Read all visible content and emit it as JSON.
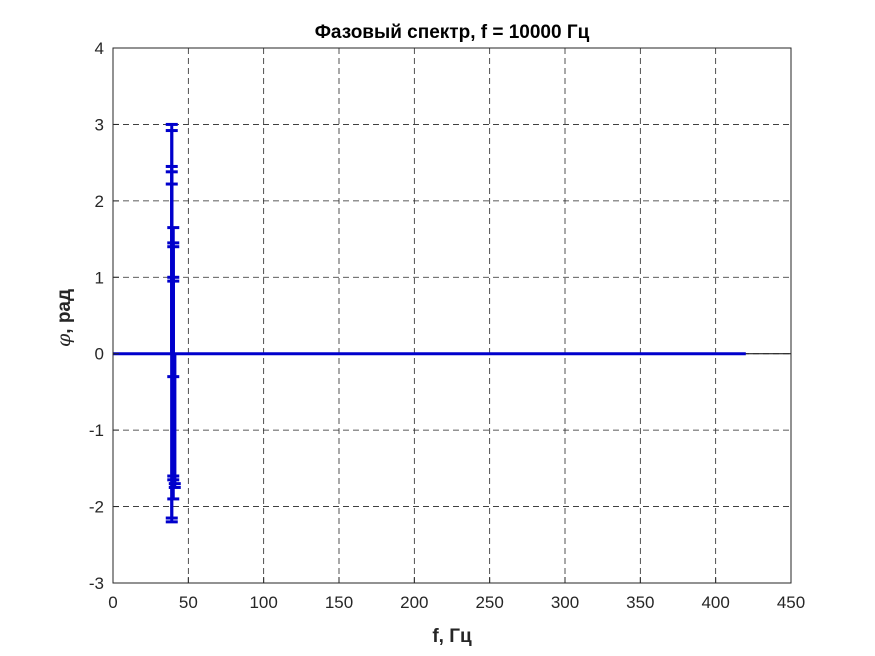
{
  "chart_data": {
    "type": "line",
    "title": "Фазовый спектр, f = 10000 Гц",
    "xlabel": "f, Гц",
    "ylabel_symbol": "φ",
    "ylabel_text": ", рад",
    "xlim": [
      0,
      450
    ],
    "ylim": [
      -3,
      4
    ],
    "xticks": [
      0,
      50,
      100,
      150,
      200,
      250,
      300,
      350,
      400,
      450
    ],
    "yticks": [
      -3,
      -2,
      -1,
      0,
      1,
      2,
      3,
      4
    ],
    "xtick_labels": [
      "0",
      "50",
      "100",
      "150",
      "200",
      "250",
      "300",
      "350",
      "400",
      "450"
    ],
    "ytick_labels": [
      "-3",
      "-2",
      "-1",
      "0",
      "1",
      "2",
      "3",
      "4"
    ],
    "grid": true,
    "grid_style": "dashed",
    "colors": {
      "series": "#0000cc",
      "axes": "#262626",
      "grid": "#262626",
      "zero_line": "#000000"
    },
    "zero_line": {
      "x": [
        0,
        420
      ],
      "y": 0
    },
    "baseline_series": {
      "x_start": 0,
      "x_end": 420,
      "y": 0
    },
    "stems": [
      {
        "x": 39,
        "y": 3.0
      },
      {
        "x": 39,
        "y": 2.92
      },
      {
        "x": 39,
        "y": 2.45
      },
      {
        "x": 39,
        "y": 2.38
      },
      {
        "x": 39,
        "y": 2.22
      },
      {
        "x": 39,
        "y": -2.15
      },
      {
        "x": 39,
        "y": -2.2
      },
      {
        "x": 40,
        "y": 1.65
      },
      {
        "x": 40,
        "y": 1.45
      },
      {
        "x": 40,
        "y": 1.4
      },
      {
        "x": 40,
        "y": 1.0
      },
      {
        "x": 40,
        "y": 0.95
      },
      {
        "x": 40,
        "y": -0.3
      },
      {
        "x": 40,
        "y": -1.6
      },
      {
        "x": 40,
        "y": -1.65
      },
      {
        "x": 40,
        "y": -1.9
      },
      {
        "x": 41,
        "y": -1.7
      },
      {
        "x": 41,
        "y": -1.75
      }
    ]
  }
}
